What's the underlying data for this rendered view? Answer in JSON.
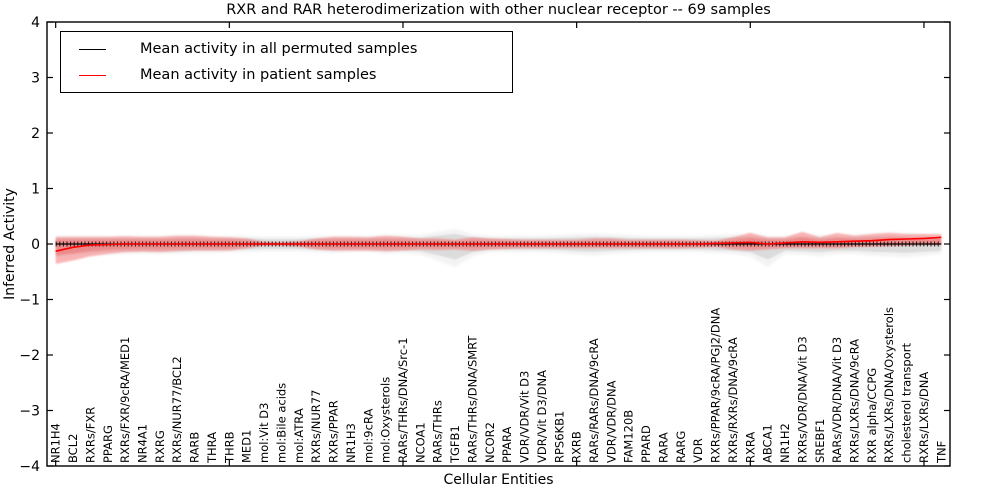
{
  "legend": {
    "items": [
      {
        "label": "Mean activity in all permuted samples",
        "color": "#000000"
      },
      {
        "label": "Mean activity in patient samples",
        "color": "#ff0000"
      }
    ],
    "position": "upper left"
  },
  "chart_data": {
    "type": "line",
    "title": "RXR and RAR heterodimerization with other nuclear receptor -- 69 samples",
    "xlabel": "Cellular Entities",
    "ylabel": "Inferred Activity",
    "ylim": [
      -4,
      4
    ],
    "yticks": [
      4,
      3,
      2,
      1,
      0,
      -1,
      -2,
      -3,
      -4
    ],
    "ytick_labels": [
      "4",
      "3",
      "2",
      "1",
      "0",
      "−1",
      "−2",
      "−3",
      "−4"
    ],
    "xtick_indices": [
      0,
      10,
      20,
      30,
      40,
      50
    ],
    "grid": false,
    "legend_position": "upper left",
    "categories": [
      "NR1H4",
      "BCL2",
      "RXRs/FXR",
      "PPARG",
      "RXRs/FXR/9cRA/MED1",
      "NR4A1",
      "RXRG",
      "RXRs/NUR77/BCL2",
      "RARB",
      "THRA",
      "THRB",
      "MED1",
      "mol:Vit D3",
      "mol:Bile acids",
      "mol:ATRA",
      "RXRs/NUR77",
      "RXRs/PPAR",
      "NR1H3",
      "mol:9cRA",
      "mol:Oxysterols",
      "RARs/THRs/DNA/Src-1",
      "NCOA1",
      "RARs/THRs",
      "TGFB1",
      "RARs/THRs/DNA/SMRT",
      "NCOR2",
      "PPARA",
      "VDR/VDR/Vit D3",
      "VDR/Vit D3/DNA",
      "RPS6KB1",
      "RXRB",
      "RARs/RARs/DNA/9cRA",
      "VDR/VDR/DNA",
      "FAM120B",
      "PPARD",
      "RARA",
      "RARG",
      "VDR",
      "RXRs/PPAR/9cRA/PGJ2/DNA",
      "RXRs/RXRs/DNA/9cRA",
      "RXRA",
      "ABCA1",
      "NR1H2",
      "RXRs/VDR/DNA/Vit D3",
      "SREBF1",
      "RARs/VDR/DNA/Vit D3",
      "RXRs/LXRs/DNA/9cRA",
      "RXR alpha/CCPG",
      "RXRs/LXRs/DNA/Oxysterols",
      "cholesterol transport",
      "RXRs/LXRs/DNA",
      "TNF"
    ],
    "series": [
      {
        "name": "Mean activity in all permuted samples",
        "color": "#000000",
        "marker": "tick-texture",
        "values": [
          0,
          0,
          0,
          0,
          0,
          0,
          0,
          0,
          0,
          0,
          0,
          0,
          0,
          0,
          0,
          0,
          0,
          0,
          0,
          0,
          0,
          0,
          0,
          0,
          0,
          0,
          0,
          0,
          0,
          0,
          0,
          0,
          0,
          0,
          0,
          0,
          0,
          0,
          0,
          0,
          0,
          0,
          0,
          0,
          0,
          0,
          0,
          0,
          0,
          0,
          0,
          0
        ]
      },
      {
        "name": "Mean activity in patient samples",
        "color": "#ff0000",
        "marker": "none",
        "values": [
          -0.13,
          -0.06,
          -0.02,
          -0.01,
          0,
          0,
          0,
          0,
          0,
          0,
          0,
          0,
          0,
          0,
          0,
          0,
          0,
          0,
          0,
          0,
          0,
          0,
          0,
          0,
          0,
          0,
          0,
          0,
          0,
          0,
          0,
          0,
          0,
          0,
          0,
          0,
          0,
          0,
          0.01,
          0.02,
          0.03,
          0,
          0.02,
          0.04,
          0.03,
          0.04,
          0.05,
          0.06,
          0.08,
          0.09,
          0.1,
          0.12
        ]
      }
    ],
    "bands": [
      {
        "name": "permuted-samples-range",
        "color": "#8a8a8a",
        "opacity": 0.22,
        "halo_scale": 1.5,
        "halo_opacity": 0.1,
        "upper": [
          0.1,
          0.1,
          0.1,
          0.1,
          0.1,
          0.1,
          0.1,
          0.11,
          0.11,
          0.1,
          0.1,
          0.1,
          0.09,
          0.09,
          0.09,
          0.1,
          0.1,
          0.1,
          0.1,
          0.11,
          0.11,
          0.11,
          0.15,
          0.18,
          0.12,
          0.1,
          0.1,
          0.1,
          0.1,
          0.11,
          0.12,
          0.13,
          0.12,
          0.11,
          0.1,
          0.1,
          0.1,
          0.1,
          0.11,
          0.12,
          0.13,
          0.1,
          0.1,
          0.13,
          0.11,
          0.12,
          0.12,
          0.13,
          0.14,
          0.13,
          0.12,
          0.1
        ],
        "lower": [
          -0.22,
          -0.18,
          -0.15,
          -0.13,
          -0.12,
          -0.12,
          -0.12,
          -0.12,
          -0.11,
          -0.11,
          -0.1,
          -0.1,
          -0.09,
          -0.09,
          -0.09,
          -0.1,
          -0.11,
          -0.1,
          -0.1,
          -0.12,
          -0.11,
          -0.13,
          -0.2,
          -0.28,
          -0.15,
          -0.1,
          -0.1,
          -0.1,
          -0.1,
          -0.11,
          -0.13,
          -0.14,
          -0.12,
          -0.11,
          -0.1,
          -0.1,
          -0.1,
          -0.1,
          -0.11,
          -0.12,
          -0.15,
          -0.28,
          -0.12,
          -0.13,
          -0.15,
          -0.12,
          -0.12,
          -0.14,
          -0.15,
          -0.16,
          -0.14,
          -0.12
        ]
      },
      {
        "name": "patient-samples-range",
        "color": "#ff3030",
        "opacity": 0.32,
        "core_scale": 0.55,
        "core_opacity": 0.22,
        "upper": [
          0.13,
          0.13,
          0.13,
          0.13,
          0.14,
          0.13,
          0.13,
          0.15,
          0.15,
          0.13,
          0.12,
          0.1,
          0.04,
          0.03,
          0.05,
          0.1,
          0.13,
          0.13,
          0.12,
          0.15,
          0.13,
          0.1,
          0.1,
          0.08,
          0.12,
          0.1,
          0.09,
          0.08,
          0.08,
          0.08,
          0.08,
          0.1,
          0.1,
          0.08,
          0.08,
          0.08,
          0.08,
          0.07,
          0.06,
          0.12,
          0.2,
          0.12,
          0.12,
          0.22,
          0.12,
          0.2,
          0.15,
          0.18,
          0.2,
          0.18,
          0.18,
          0.18
        ],
        "lower": [
          -0.36,
          -0.3,
          -0.22,
          -0.18,
          -0.15,
          -0.14,
          -0.15,
          -0.13,
          -0.12,
          -0.12,
          -0.12,
          -0.08,
          -0.03,
          -0.03,
          -0.05,
          -0.1,
          -0.12,
          -0.12,
          -0.12,
          -0.13,
          -0.12,
          -0.1,
          -0.11,
          -0.1,
          -0.12,
          -0.1,
          -0.09,
          -0.08,
          -0.08,
          -0.08,
          -0.08,
          -0.08,
          -0.08,
          -0.08,
          -0.08,
          -0.08,
          -0.08,
          -0.07,
          -0.06,
          -0.1,
          -0.12,
          -0.1,
          -0.08,
          -0.08,
          -0.08,
          -0.08,
          -0.06,
          -0.05,
          -0.04,
          -0.03,
          -0.02,
          -0.02
        ]
      }
    ]
  }
}
